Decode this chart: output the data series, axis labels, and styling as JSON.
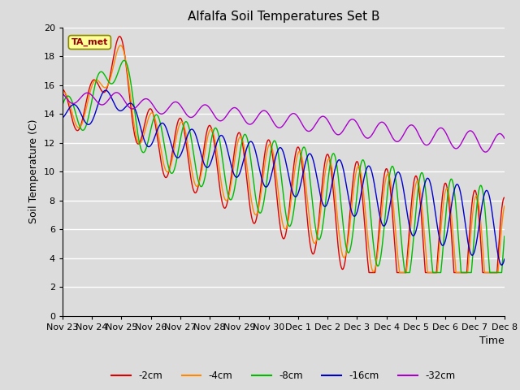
{
  "title": "Alfalfa Soil Temperatures Set B",
  "xlabel": "Time",
  "ylabel": "Soil Temperature (C)",
  "ylim": [
    0,
    20
  ],
  "background_color": "#dcdcdc",
  "grid_color": "#ffffff",
  "annotation_text": "TA_met",
  "annotation_box_color": "#ffff99",
  "annotation_text_color": "#990000",
  "x_tick_labels": [
    "Nov 23",
    "Nov 24",
    "Nov 25",
    "Nov 26",
    "Nov 27",
    "Nov 28",
    "Nov 29",
    "Nov 30",
    "Dec 1",
    "Dec 2",
    "Dec 3",
    "Dec 4",
    "Dec 5",
    "Dec 6",
    "Dec 7",
    "Dec 8"
  ],
  "series": {
    "-2cm": {
      "color": "#dd0000",
      "lw": 1.0
    },
    "-4cm": {
      "color": "#ff8800",
      "lw": 1.0
    },
    "-8cm": {
      "color": "#00bb00",
      "lw": 1.0
    },
    "-16cm": {
      "color": "#0000cc",
      "lw": 1.0
    },
    "-32cm": {
      "color": "#aa00cc",
      "lw": 1.0
    }
  }
}
